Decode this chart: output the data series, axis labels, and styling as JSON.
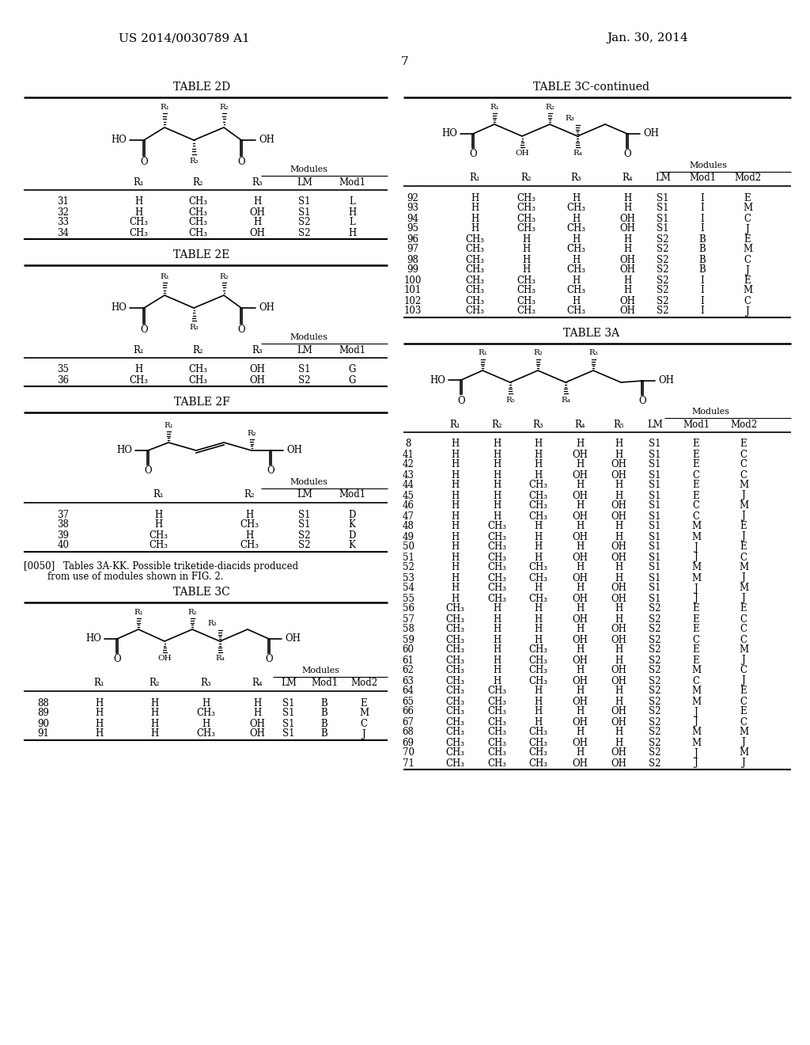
{
  "patent_number": "US 2014/0030789 A1",
  "date": "Jan. 30, 2014",
  "page": "7",
  "tables": {
    "2D": {
      "title": "TABLE 2D",
      "rows": [
        [
          "31",
          "H",
          "CH₃",
          "H",
          "S1",
          "L"
        ],
        [
          "32",
          "H",
          "CH₃",
          "OH",
          "S1",
          "H"
        ],
        [
          "33",
          "CH₃",
          "CH₃",
          "H",
          "S2",
          "L"
        ],
        [
          "34",
          "CH₃",
          "CH₃",
          "OH",
          "S2",
          "H"
        ]
      ]
    },
    "2E": {
      "title": "TABLE 2E",
      "rows": [
        [
          "35",
          "H",
          "CH₃",
          "OH",
          "S1",
          "G"
        ],
        [
          "36",
          "CH₃",
          "CH₃",
          "OH",
          "S2",
          "G"
        ]
      ]
    },
    "2F": {
      "title": "TABLE 2F",
      "rows": [
        [
          "37",
          "H",
          "H",
          "S1",
          "D"
        ],
        [
          "38",
          "H",
          "CH₃",
          "S1",
          "K"
        ],
        [
          "39",
          "CH₃",
          "H",
          "S2",
          "D"
        ],
        [
          "40",
          "CH₃",
          "CH₃",
          "S2",
          "K"
        ]
      ]
    },
    "3C": {
      "title": "TABLE 3C",
      "rows": [
        [
          "88",
          "H",
          "H",
          "H",
          "H",
          "S1",
          "B",
          "E"
        ],
        [
          "89",
          "H",
          "H",
          "CH₃",
          "H",
          "S1",
          "B",
          "M"
        ],
        [
          "90",
          "H",
          "H",
          "H",
          "OH",
          "S1",
          "B",
          "C"
        ],
        [
          "91",
          "H",
          "H",
          "CH₃",
          "OH",
          "S1",
          "B",
          "J"
        ]
      ]
    },
    "3C_continued": {
      "title": "TABLE 3C-continued",
      "rows": [
        [
          "92",
          "H",
          "CH₃",
          "H",
          "H",
          "S1",
          "I",
          "E"
        ],
        [
          "93",
          "H",
          "CH₃",
          "CH₃",
          "H",
          "S1",
          "I",
          "M"
        ],
        [
          "94",
          "H",
          "CH₃",
          "H",
          "OH",
          "S1",
          "I",
          "C"
        ],
        [
          "95",
          "H",
          "CH₃",
          "CH₃",
          "OH",
          "S1",
          "I",
          "J"
        ],
        [
          "96",
          "CH₃",
          "H",
          "H",
          "H",
          "S2",
          "B",
          "E"
        ],
        [
          "97",
          "CH₃",
          "H",
          "CH₃",
          "H",
          "S2",
          "B",
          "M"
        ],
        [
          "98",
          "CH₃",
          "H",
          "H",
          "OH",
          "S2",
          "B",
          "C"
        ],
        [
          "99",
          "CH₃",
          "H",
          "CH₃",
          "OH",
          "S2",
          "B",
          "J"
        ],
        [
          "100",
          "CH₃",
          "CH₃",
          "H",
          "H",
          "S2",
          "I",
          "E"
        ],
        [
          "101",
          "CH₃",
          "CH₃",
          "CH₃",
          "H",
          "S2",
          "I",
          "M"
        ],
        [
          "102",
          "CH₃",
          "CH₃",
          "H",
          "OH",
          "S2",
          "I",
          "C"
        ],
        [
          "103",
          "CH₃",
          "CH₃",
          "CH₃",
          "OH",
          "S2",
          "I",
          "J"
        ]
      ]
    },
    "3A": {
      "title": "TABLE 3A",
      "rows": [
        [
          "8",
          "H",
          "H",
          "H",
          "H",
          "H",
          "S1",
          "E",
          "E"
        ],
        [
          "41",
          "H",
          "H",
          "H",
          "OH",
          "H",
          "S1",
          "E",
          "C"
        ],
        [
          "42",
          "H",
          "H",
          "H",
          "H",
          "OH",
          "S1",
          "E",
          "C"
        ],
        [
          "43",
          "H",
          "H",
          "H",
          "OH",
          "OH",
          "S1",
          "C",
          "C"
        ],
        [
          "44",
          "H",
          "H",
          "CH₃",
          "H",
          "H",
          "S1",
          "E",
          "M"
        ],
        [
          "45",
          "H",
          "H",
          "CH₃",
          "OH",
          "H",
          "S1",
          "E",
          "J"
        ],
        [
          "46",
          "H",
          "H",
          "CH₃",
          "H",
          "OH",
          "S1",
          "C",
          "M"
        ],
        [
          "47",
          "H",
          "H",
          "CH₃",
          "OH",
          "OH",
          "S1",
          "C",
          "J"
        ],
        [
          "48",
          "H",
          "CH₃",
          "H",
          "H",
          "H",
          "S1",
          "M",
          "E"
        ],
        [
          "49",
          "H",
          "CH₃",
          "H",
          "OH",
          "H",
          "S1",
          "M",
          "J"
        ],
        [
          "50",
          "H",
          "CH₃",
          "H",
          "H",
          "OH",
          "S1",
          "J",
          "E"
        ],
        [
          "51",
          "H",
          "CH₃",
          "H",
          "OH",
          "OH",
          "S1",
          "J",
          "C"
        ],
        [
          "52",
          "H",
          "CH₃",
          "CH₃",
          "H",
          "H",
          "S1",
          "M",
          "M"
        ],
        [
          "53",
          "H",
          "CH₃",
          "CH₃",
          "OH",
          "H",
          "S1",
          "M",
          "J"
        ],
        [
          "54",
          "H",
          "CH₃",
          "H",
          "H",
          "OH",
          "S1",
          "J",
          "M"
        ],
        [
          "55",
          "H",
          "CH₃",
          "CH₃",
          "OH",
          "OH",
          "S1",
          "J",
          "J"
        ],
        [
          "56",
          "CH₃",
          "H",
          "H",
          "H",
          "H",
          "S2",
          "E",
          "E"
        ],
        [
          "57",
          "CH₃",
          "H",
          "H",
          "OH",
          "H",
          "S2",
          "E",
          "C"
        ],
        [
          "58",
          "CH₃",
          "H",
          "H",
          "H",
          "OH",
          "S2",
          "E",
          "C"
        ],
        [
          "59",
          "CH₃",
          "H",
          "H",
          "OH",
          "OH",
          "S2",
          "C",
          "C"
        ],
        [
          "60",
          "CH₃",
          "H",
          "CH₃",
          "H",
          "H",
          "S2",
          "E",
          "M"
        ],
        [
          "61",
          "CH₃",
          "H",
          "CH₃",
          "OH",
          "H",
          "S2",
          "E",
          "J"
        ],
        [
          "62",
          "CH₃",
          "H",
          "CH₃",
          "H",
          "OH",
          "S2",
          "M",
          "C"
        ],
        [
          "63",
          "CH₃",
          "H",
          "CH₃",
          "OH",
          "OH",
          "S2",
          "C",
          "J"
        ],
        [
          "64",
          "CH₃",
          "CH₃",
          "H",
          "H",
          "H",
          "S2",
          "M",
          "E"
        ],
        [
          "65",
          "CH₃",
          "CH₃",
          "H",
          "OH",
          "H",
          "S2",
          "M",
          "C"
        ],
        [
          "66",
          "CH₃",
          "CH₃",
          "H",
          "H",
          "OH",
          "S2",
          "J",
          "E"
        ],
        [
          "67",
          "CH₃",
          "CH₃",
          "H",
          "OH",
          "OH",
          "S2",
          "J",
          "C"
        ],
        [
          "68",
          "CH₃",
          "CH₃",
          "CH₃",
          "H",
          "H",
          "S2",
          "M",
          "M"
        ],
        [
          "69",
          "CH₃",
          "CH₃",
          "CH₃",
          "OH",
          "H",
          "S2",
          "M",
          "J"
        ],
        [
          "70",
          "CH₃",
          "CH₃",
          "CH₃",
          "H",
          "OH",
          "S2",
          "J",
          "M"
        ],
        [
          "71",
          "CH₃",
          "CH₃",
          "CH₃",
          "OH",
          "OH",
          "S2",
          "J",
          "J"
        ]
      ]
    }
  }
}
